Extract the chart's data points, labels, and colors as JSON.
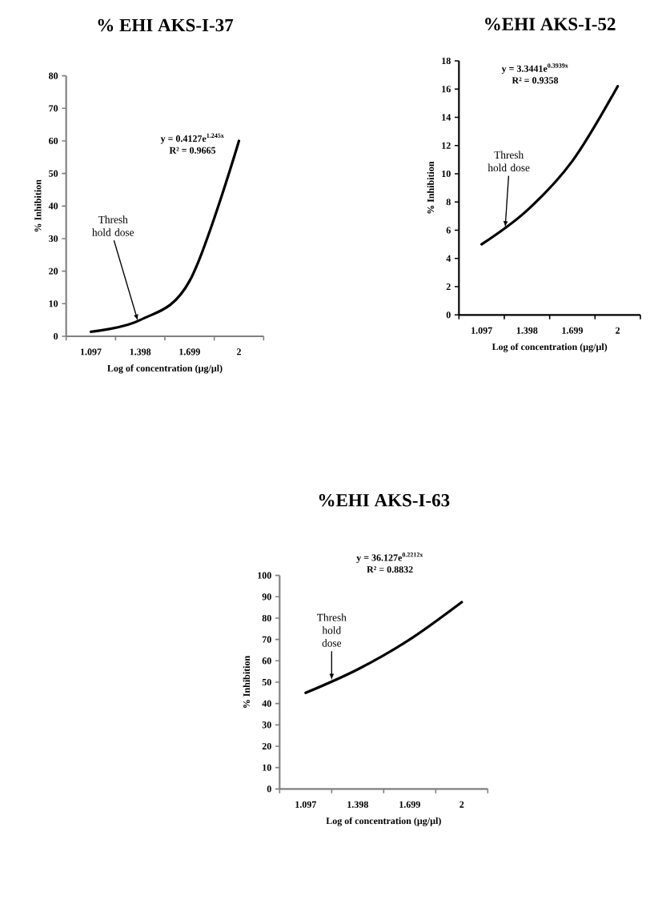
{
  "chart_data": [
    {
      "type": "line",
      "title": "% EHI AKS-I-37",
      "xlabel": "Log of concentration (µg/µl)",
      "ylabel": "% Inhibition",
      "categories": [
        "1.097",
        "1.398",
        "1.699",
        "2"
      ],
      "series": [
        {
          "color": "#000000",
          "values": [
            1.4,
            5,
            17,
            60
          ]
        }
      ],
      "ylim": [
        0,
        80
      ],
      "yticks": [
        0,
        10,
        20,
        30,
        40,
        50,
        60,
        70,
        80
      ],
      "annotations": [
        "y = 0.4127e$^{1.245x}$",
        "R² = 0.9665",
        "Thresh hold dose"
      ]
    },
    {
      "type": "line",
      "title": "%EHI AKS-I-52",
      "xlabel": "Log of concentration (µg/µl)",
      "ylabel": "% Inhibition",
      "categories": [
        "1.097",
        "1.398",
        "1.699",
        "2"
      ],
      "series": [
        {
          "color": "#000000",
          "values": [
            5,
            7.4,
            10.9,
            16.2
          ]
        }
      ],
      "ylim": [
        0,
        18
      ],
      "yticks": [
        0,
        2,
        4,
        6,
        8,
        10,
        12,
        14,
        16,
        18
      ],
      "annotations": [
        "y = 3.3441e$^{0.3939x}$",
        "R² = 0.9358",
        {
          "text": "Thresh hold dose",
          "y": 6.2
        }
      ]
    },
    {
      "type": "line",
      "title": "%EHI AKS-I-63",
      "xlabel": "Log of concentration (µg/µl)",
      "ylabel": "% Inhibition",
      "categories": [
        "1.097",
        "1.398",
        "1.699",
        "2"
      ],
      "series": [
        {
          "color": "#000000",
          "values": [
            45,
            56,
            70,
            87.5
          ]
        }
      ],
      "ylim": [
        0,
        100
      ],
      "yticks": [
        0,
        10,
        20,
        30,
        40,
        50,
        60,
        70,
        80,
        90,
        100
      ],
      "annotations": [
        "y = 36.127e$^{0.2212x}$",
        "R² = 0.8832",
        {
          "text": "Thresh hold dose",
          "y": 51
        }
      ]
    }
  ]
}
